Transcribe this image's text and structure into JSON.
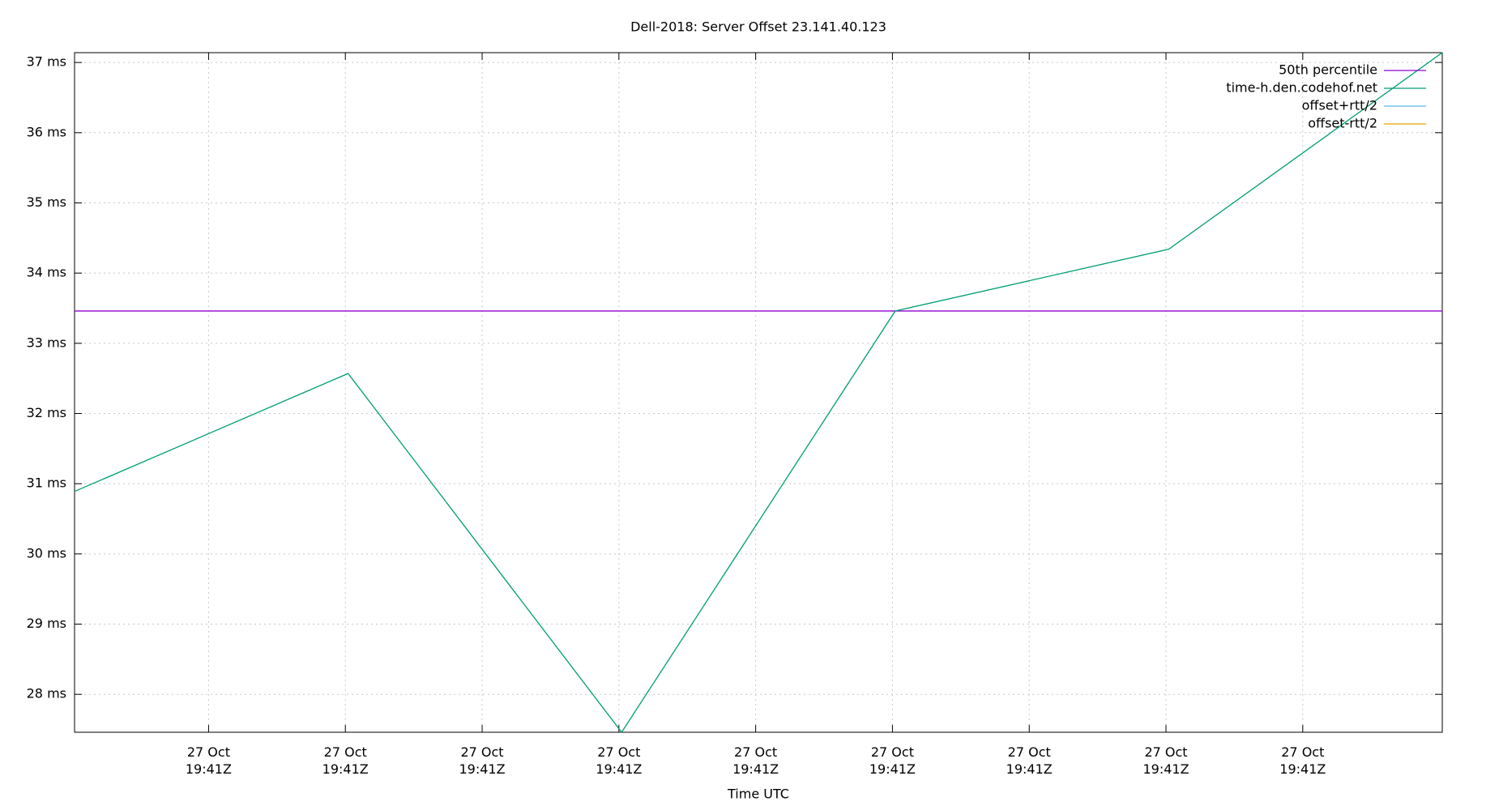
{
  "chart_data": {
    "type": "line",
    "title": "Dell-2018: Server Offset 23.141.40.123",
    "x_label": "Time UTC",
    "x": [
      0,
      1,
      2,
      3,
      4,
      5
    ],
    "series": [
      {
        "name": "50th percentile",
        "color": "#9400d3",
        "values": [
          33.46,
          33.46,
          33.46,
          33.46,
          33.46,
          33.46
        ]
      },
      {
        "name": "time-h.den.codehof.net",
        "color": "#009e73",
        "values": [
          30.89,
          32.57,
          27.46,
          33.46,
          34.34,
          37.14
        ]
      },
      {
        "name": "offset+rtt/2",
        "color": "#56b4e9",
        "values": [
          null,
          null,
          null,
          null,
          null,
          null
        ]
      },
      {
        "name": "offset-rtt/2",
        "color": "#e69f00",
        "values": [
          null,
          null,
          null,
          null,
          null,
          null
        ]
      }
    ],
    "xlim": [
      0,
      5
    ],
    "xticks": [
      {
        "value": 0.49,
        "label": "27 Oct\n19:41Z"
      },
      {
        "value": 0.99,
        "label": "27 Oct\n19:41Z"
      },
      {
        "value": 1.49,
        "label": "27 Oct\n19:41Z"
      },
      {
        "value": 1.99,
        "label": "27 Oct\n19:41Z"
      },
      {
        "value": 2.49,
        "label": "27 Oct\n19:41Z"
      },
      {
        "value": 2.99,
        "label": "27 Oct\n19:41Z"
      },
      {
        "value": 3.49,
        "label": "27 Oct\n19:41Z"
      },
      {
        "value": 3.99,
        "label": "27 Oct\n19:41Z"
      },
      {
        "value": 4.49,
        "label": "27 Oct\n19:41Z"
      }
    ],
    "ylim": [
      27.46,
      37.14
    ],
    "yticks": [
      {
        "value": 28,
        "label": "28 ms"
      },
      {
        "value": 29,
        "label": "29 ms"
      },
      {
        "value": 30,
        "label": "30 ms"
      },
      {
        "value": 31,
        "label": "31 ms"
      },
      {
        "value": 32,
        "label": "32 ms"
      },
      {
        "value": 33,
        "label": "33 ms"
      },
      {
        "value": 34,
        "label": "34 ms"
      },
      {
        "value": 35,
        "label": "35 ms"
      },
      {
        "value": 36,
        "label": "36 ms"
      },
      {
        "value": 37,
        "label": "37 ms"
      }
    ],
    "grid": true,
    "legend_position": "top-right"
  }
}
